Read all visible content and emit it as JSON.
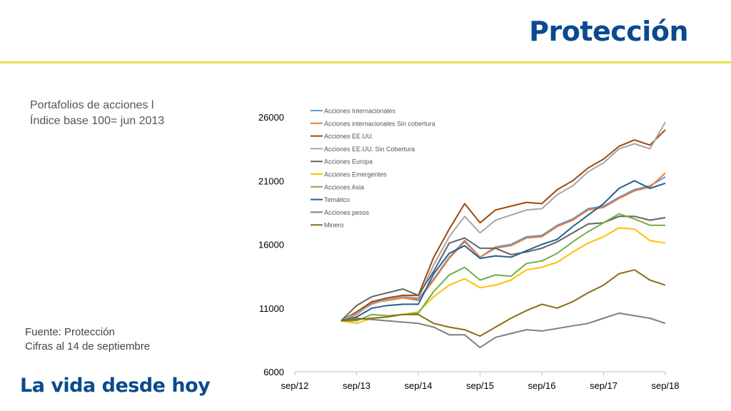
{
  "header": {
    "title": "Protección"
  },
  "left_panel": {
    "subtitle_line1": "Portafolios de acciones l",
    "subtitle_line2": "Índice base 100= jun 2013",
    "source_line1": "Fuente: Protección",
    "source_line2": "Cifras al 14 de septiembre"
  },
  "footer": {
    "slogan": "La vida desde hoy"
  },
  "colors": {
    "brand": "#0b4a8f",
    "accent_rule": "#e6e44a"
  },
  "chart_data": {
    "type": "line",
    "title": "",
    "xlabel": "",
    "ylabel": "",
    "ylim": [
      6000,
      26000
    ],
    "yticks": [
      6000,
      11000,
      16000,
      21000,
      26000
    ],
    "xticks": [
      "sep/12",
      "sep/13",
      "sep/14",
      "sep/15",
      "sep/16",
      "sep/17",
      "sep/18"
    ],
    "x": [
      "jun/13",
      "sep/13",
      "dic/13",
      "mar/14",
      "jun/14",
      "sep/14",
      "dic/14",
      "mar/15",
      "jun/15",
      "sep/15",
      "dic/15",
      "mar/16",
      "jun/16",
      "sep/16",
      "dic/16",
      "mar/17",
      "jun/17",
      "sep/17",
      "dic/17",
      "mar/18",
      "jun/18",
      "sep/18"
    ],
    "legend_position": "top-left",
    "grid": false,
    "series": [
      {
        "name": "Acciones Internacionales",
        "color": "#5b9bd5",
        "values": [
          10000,
          10600,
          11500,
          11700,
          11900,
          11700,
          13300,
          15000,
          16300,
          15000,
          15800,
          16000,
          16600,
          16700,
          17500,
          18000,
          18800,
          19000,
          19700,
          20300,
          20600,
          21300
        ]
      },
      {
        "name": "Acciones internacionales Sin cobertura",
        "color": "#ed7d31",
        "values": [
          10000,
          10500,
          11400,
          11600,
          11800,
          11600,
          13200,
          14900,
          16200,
          15000,
          15700,
          15900,
          16500,
          16600,
          17400,
          17900,
          18700,
          18900,
          19600,
          20200,
          20500,
          21600
        ]
      },
      {
        "name": "Acciones EE.UU.",
        "color": "#9e480e",
        "values": [
          10000,
          10700,
          11500,
          11800,
          12000,
          12000,
          15000,
          17200,
          19200,
          17700,
          18700,
          19000,
          19300,
          19200,
          20300,
          21000,
          22000,
          22700,
          23700,
          24200,
          23800,
          25000
        ]
      },
      {
        "name": "Acciones EE.UU. Sin Cobertura",
        "color": "#a5a5a5",
        "values": [
          10000,
          10600,
          11300,
          11700,
          11900,
          11800,
          14400,
          16600,
          18200,
          16900,
          17900,
          18300,
          18700,
          18800,
          19900,
          20600,
          21700,
          22400,
          23500,
          23900,
          23500,
          25600
        ]
      },
      {
        "name": "Acciones Europa",
        "color": "#636363",
        "values": [
          10000,
          11200,
          11900,
          12200,
          12500,
          12000,
          13900,
          16100,
          16500,
          15700,
          15700,
          15200,
          15400,
          15700,
          16200,
          16900,
          17600,
          17700,
          18200,
          18200,
          17900,
          18100
        ]
      },
      {
        "name": "Acciones Emergentes",
        "color": "#ffc000",
        "values": [
          10000,
          9800,
          10200,
          10300,
          10500,
          10700,
          11900,
          12800,
          13300,
          12600,
          12800,
          13200,
          14000,
          14200,
          14600,
          15400,
          16100,
          16600,
          17300,
          17200,
          16300,
          16100
        ]
      },
      {
        "name": "Acciones Asia",
        "color": "#70ad47",
        "values": [
          10000,
          10000,
          10500,
          10400,
          10500,
          10600,
          12300,
          13600,
          14200,
          13200,
          13600,
          13500,
          14500,
          14700,
          15300,
          16200,
          17000,
          17700,
          18400,
          18000,
          17500,
          17500
        ]
      },
      {
        "name": "Temático",
        "color": "#255e91",
        "values": [
          10000,
          10300,
          11000,
          11200,
          11300,
          11300,
          13700,
          15300,
          15900,
          14900,
          15100,
          15000,
          15500,
          16000,
          16400,
          17400,
          18300,
          19200,
          20400,
          21000,
          20400,
          20800
        ]
      },
      {
        "name": "Acciones pesos",
        "color": "#7f7f7f",
        "values": [
          10000,
          10200,
          10100,
          10000,
          9900,
          9800,
          9500,
          8900,
          8900,
          7900,
          8700,
          9000,
          9300,
          9200,
          9400,
          9600,
          9800,
          10200,
          10600,
          10400,
          10200,
          9800
        ]
      },
      {
        "name": "Minero",
        "color": "#8c6d14",
        "values": [
          10000,
          10100,
          10200,
          10300,
          10500,
          10500,
          9800,
          9500,
          9300,
          8800,
          9500,
          10200,
          10800,
          11300,
          11000,
          11500,
          12200,
          12800,
          13700,
          14000,
          13200,
          12800
        ]
      }
    ]
  }
}
